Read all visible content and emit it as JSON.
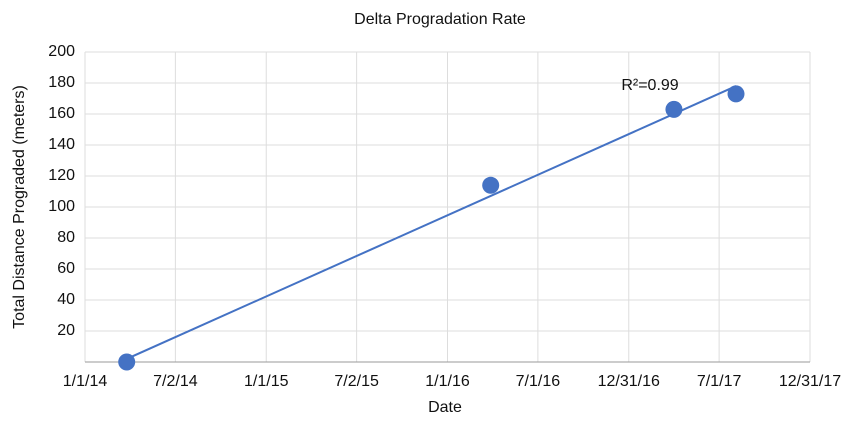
{
  "chart_data": {
    "type": "scatter",
    "title": "Delta Progradation Rate",
    "x_label": "Date",
    "y_label": "Total Distance Prograded (meters)",
    "x": [
      "2014-03-26",
      "2016-03-28",
      "2017-04-01",
      "2017-08-04"
    ],
    "values": [
      0,
      114,
      163,
      173
    ],
    "color": "#4472c4",
    "trendline": {
      "x": [
        "2014-03-26",
        "2017-08-04"
      ],
      "values": [
        2,
        178
      ],
      "color": "#4472c4"
    },
    "annotation": "R²=0.99",
    "xlim": [
      "2014-01-01",
      "2017-12-31"
    ],
    "xticks": [
      {
        "value": "2014-01-01",
        "label": "1/1/14"
      },
      {
        "value": "2014-07-02",
        "label": "7/2/14"
      },
      {
        "value": "2015-01-01",
        "label": "1/1/15"
      },
      {
        "value": "2015-07-02",
        "label": "7/2/15"
      },
      {
        "value": "2016-01-01",
        "label": "1/1/16"
      },
      {
        "value": "2016-07-01",
        "label": "7/1/16"
      },
      {
        "value": "2016-12-31",
        "label": "12/31/16"
      },
      {
        "value": "2017-07-01",
        "label": "7/1/17"
      },
      {
        "value": "2017-12-31",
        "label": "12/31/17"
      }
    ],
    "ylim": [
      0,
      200
    ],
    "yticks": [
      20,
      40,
      60,
      80,
      100,
      120,
      140,
      160,
      180,
      200
    ],
    "grid": true
  }
}
